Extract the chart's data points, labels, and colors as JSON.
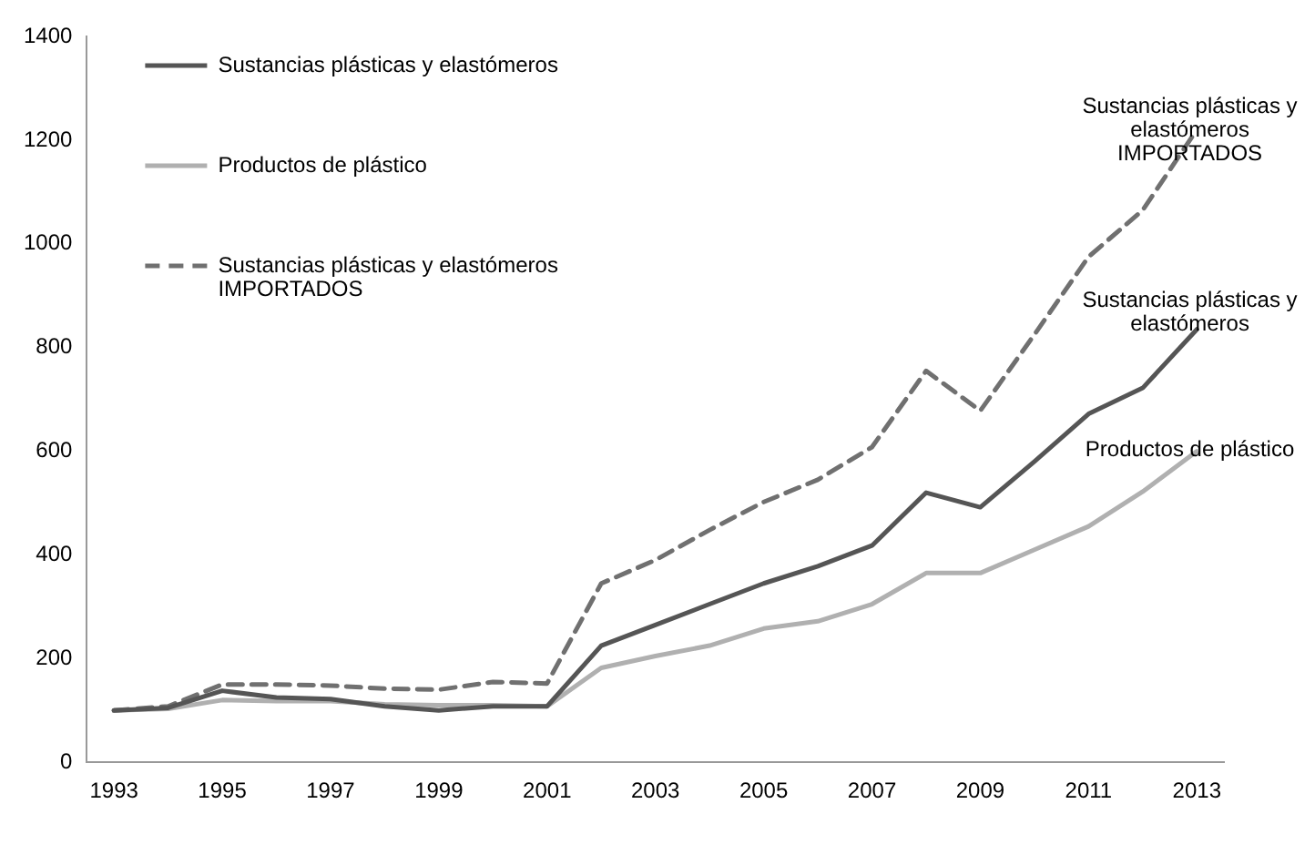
{
  "chart_data": {
    "type": "line",
    "categories": [
      "1993",
      null,
      "1995",
      null,
      "1997",
      null,
      "1999",
      null,
      "2001",
      null,
      "2003",
      null,
      "2005",
      null,
      "2007",
      null,
      "2009",
      null,
      "2011",
      null,
      "2013"
    ],
    "series": [
      {
        "name": "Sustancias plásticas y elastómeros",
        "color": "#555555",
        "line_style": "solid",
        "values": [
          100,
          105,
          138,
          125,
          122,
          108,
          100,
          108,
          108,
          225,
          265,
          305,
          345,
          378,
          418,
          520,
          492,
          580,
          672,
          722,
          835
        ]
      },
      {
        "name": "Productos de plástico",
        "color": "#b0b0b0",
        "line_style": "solid",
        "values": [
          100,
          103,
          120,
          118,
          118,
          112,
          110,
          110,
          108,
          182,
          205,
          225,
          258,
          272,
          305,
          365,
          365,
          410,
          455,
          522,
          600
        ]
      },
      {
        "name": "Sustancias plásticas y elastómeros\nIMPORTADOS",
        "color": "#707070",
        "line_style": "dashed",
        "values": [
          100,
          108,
          150,
          150,
          148,
          142,
          140,
          155,
          152,
          345,
          390,
          448,
          502,
          545,
          608,
          755,
          678,
          825,
          975,
          1065,
          1220
        ]
      }
    ],
    "annotations": [
      "Sustancias plásticas y\nelastómeros\nIMPORTADOS",
      "Sustancias plásticas y\nelastómeros",
      "Productos de plástico"
    ],
    "ylim": [
      0,
      1400
    ],
    "yticks": [
      0,
      200,
      400,
      600,
      800,
      1000,
      1200,
      1400
    ],
    "grid": false,
    "legend": "top left",
    "marker": "none"
  }
}
